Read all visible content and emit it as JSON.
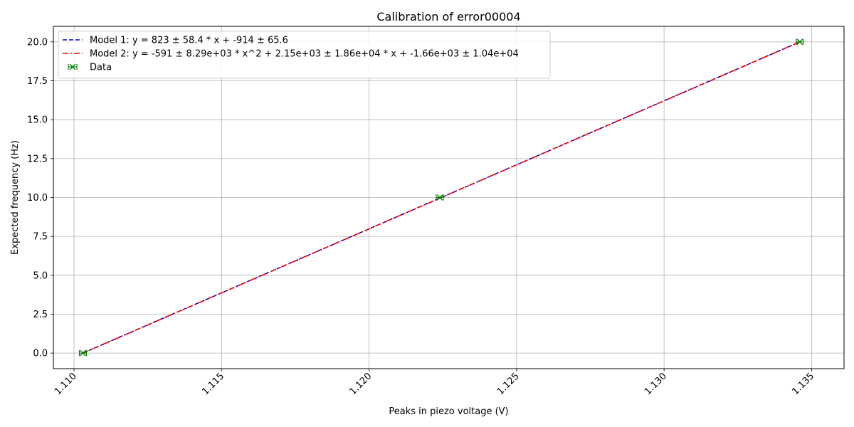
{
  "chart_data": {
    "type": "line",
    "title": "Calibration of error00004",
    "xlabel": "Peaks in piezo voltage (V)",
    "ylabel": "Expected frequency (Hz)",
    "xlim": [
      1.1093,
      1.1361
    ],
    "ylim": [
      -1.0,
      21.0
    ],
    "xticks": [
      1.11,
      1.115,
      1.12,
      1.125,
      1.13,
      1.135
    ],
    "xtick_labels": [
      "1.110",
      "1.115",
      "1.120",
      "1.125",
      "1.130",
      "1.135"
    ],
    "yticks": [
      0.0,
      2.5,
      5.0,
      7.5,
      10.0,
      12.5,
      15.0,
      17.5,
      20.0
    ],
    "ytick_labels": [
      "0.0",
      "2.5",
      "5.0",
      "7.5",
      "10.0",
      "12.5",
      "15.0",
      "17.5",
      "20.0"
    ],
    "grid": true,
    "legend_position": "top-left",
    "series": [
      {
        "name": "Model 1: y = 823 ± 58.4 * x + -914 ± 65.6",
        "kind": "line",
        "style": "dashed",
        "color": "#0000cc",
        "x": [
          1.1103,
          1.1346
        ],
        "y": [
          0.0,
          20.0
        ]
      },
      {
        "name": "Model 2: y = -591 ± 8.29e+03 * x^2 + 2.15e+03 ± 1.86e+04 * x + -1.66e+03 ± 1.04e+04",
        "kind": "line",
        "style": "dashdot",
        "color": "#ff0000",
        "x": [
          1.1103,
          1.1346
        ],
        "y": [
          0.0,
          20.0
        ]
      },
      {
        "name": "Data",
        "kind": "points",
        "marker": "x",
        "color": "#008000",
        "x": [
          1.1103,
          1.1224,
          1.1346
        ],
        "y": [
          0.0,
          10.0,
          20.0
        ]
      }
    ]
  }
}
